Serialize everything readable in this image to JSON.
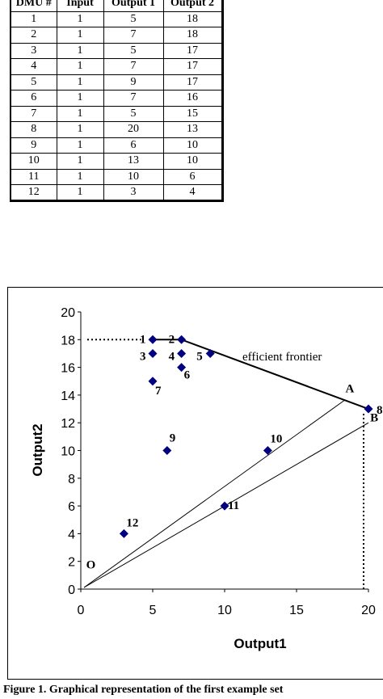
{
  "table": {
    "headers": [
      "DMU #",
      "Input",
      "Output 1",
      "Output 2"
    ],
    "rows": [
      [
        "1",
        "1",
        "5",
        "18"
      ],
      [
        "2",
        "1",
        "7",
        "18"
      ],
      [
        "3",
        "1",
        "5",
        "17"
      ],
      [
        "4",
        "1",
        "7",
        "17"
      ],
      [
        "5",
        "1",
        "9",
        "17"
      ],
      [
        "6",
        "1",
        "7",
        "16"
      ],
      [
        "7",
        "1",
        "5",
        "15"
      ],
      [
        "8",
        "1",
        "20",
        "13"
      ],
      [
        "9",
        "1",
        "6",
        "10"
      ],
      [
        "10",
        "1",
        "13",
        "10"
      ],
      [
        "11",
        "1",
        "10",
        "6"
      ],
      [
        "12",
        "1",
        "3",
        "4"
      ]
    ]
  },
  "chart_data": {
    "type": "scatter",
    "xlabel": "Output1",
    "ylabel": "Output2",
    "xlim": [
      0,
      20
    ],
    "ylim": [
      0,
      20
    ],
    "xticks": [
      0,
      5,
      10,
      15,
      20
    ],
    "yticks": [
      0,
      2,
      4,
      6,
      8,
      10,
      12,
      14,
      16,
      18,
      20
    ],
    "grid": false,
    "marker_color": "#000080",
    "points": [
      {
        "label": "1",
        "x": 5,
        "y": 18
      },
      {
        "label": "2",
        "x": 7,
        "y": 18
      },
      {
        "label": "3",
        "x": 5,
        "y": 17
      },
      {
        "label": "4",
        "x": 7,
        "y": 17
      },
      {
        "label": "5",
        "x": 9,
        "y": 17
      },
      {
        "label": "6",
        "x": 7,
        "y": 16
      },
      {
        "label": "7",
        "x": 5,
        "y": 15
      },
      {
        "label": "8",
        "x": 20,
        "y": 13
      },
      {
        "label": "9",
        "x": 6,
        "y": 10
      },
      {
        "label": "10",
        "x": 13,
        "y": 10
      },
      {
        "label": "11",
        "x": 10,
        "y": 6
      },
      {
        "label": "12",
        "x": 3,
        "y": 4
      }
    ],
    "frontier": {
      "label": "efficient frontier",
      "points": [
        [
          0,
          18
        ],
        [
          7,
          18
        ],
        [
          20,
          13
        ]
      ]
    },
    "rays": [
      {
        "to": [
          18.3,
          13.6
        ]
      },
      {
        "to": [
          20,
          12
        ]
      }
    ],
    "projection_line": {
      "from": [
        20,
        13
      ],
      "to": [
        20,
        0
      ]
    },
    "annotations": [
      {
        "text": "O",
        "x": 0.7,
        "y": 1.5
      },
      {
        "text": "A",
        "x": 18.7,
        "y": 14.2
      },
      {
        "text": "B",
        "x": 20.4,
        "y": 12.1
      }
    ]
  },
  "caption": "Figure 1. Graphical representation of the first example set"
}
